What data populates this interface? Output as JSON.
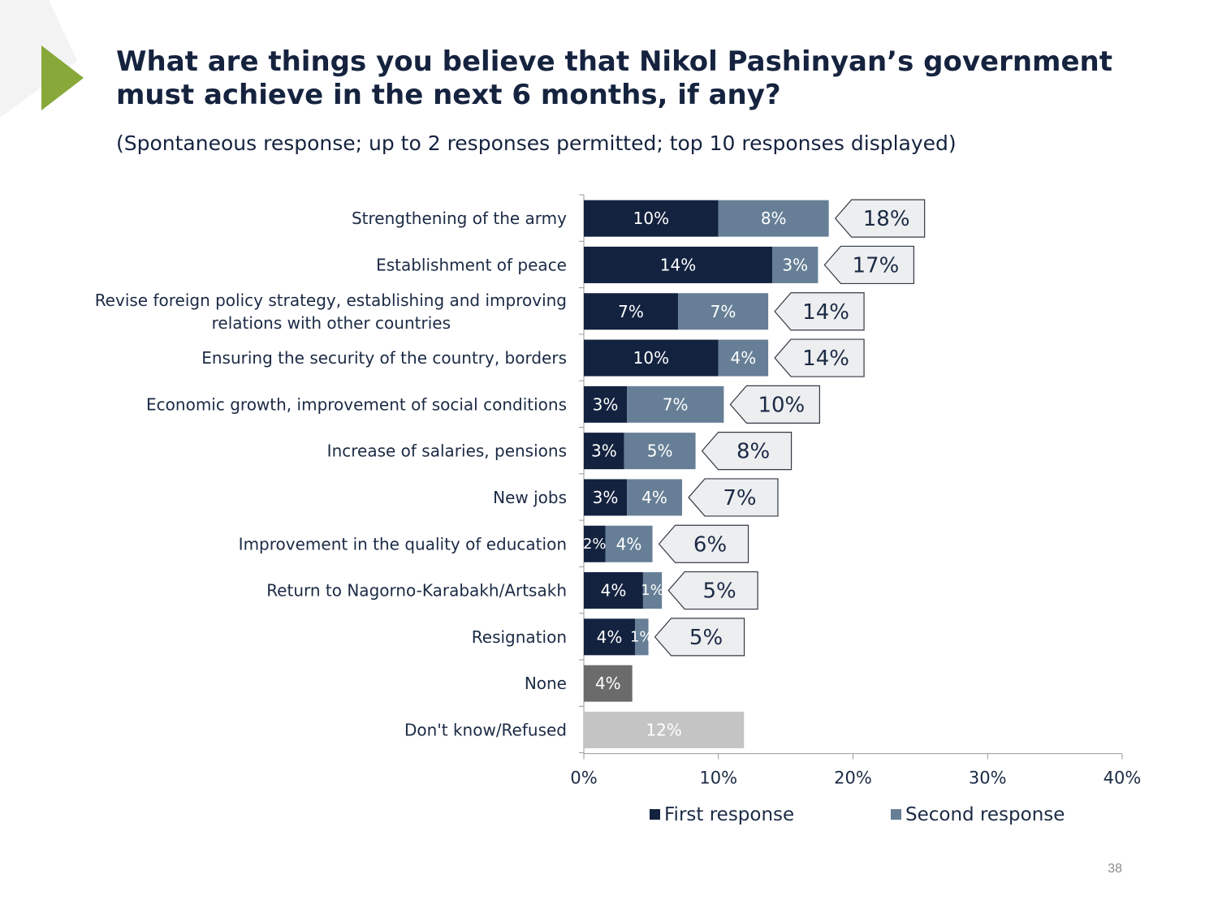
{
  "title": "What are things you believe that Nikol Pashinyan’s government must achieve in the next 6 months, if any?",
  "subtitle": "(Spontaneous response; up to 2 responses permitted; top 10 responses displayed)",
  "page_number": "38",
  "colors": {
    "first": "#13223f",
    "second": "#667f96",
    "none": "#6b6b6b",
    "dont_know": "#c4c4c4",
    "callout_bg": "#edeef0",
    "accent": "#88a83a"
  },
  "chart_data": {
    "type": "bar",
    "orientation": "horizontal",
    "stacked": true,
    "categories": [
      "Strengthening of the army",
      "Establishment of peace",
      [
        "Revise foreign policy strategy, establishing and improving",
        "relations with other countries"
      ],
      "Ensuring the security of the country, borders",
      "Economic growth, improvement of social conditions",
      "Increase of salaries, pensions",
      "New jobs",
      "Improvement in the quality of education",
      "Return to Nagorno-Karabakh/Artsakh",
      "Resignation",
      "None",
      "Don't know/Refused"
    ],
    "series": [
      {
        "name": "First response",
        "values": [
          10,
          14,
          7,
          10,
          3,
          3,
          3,
          2,
          4,
          4,
          null,
          null
        ]
      },
      {
        "name": "Second response",
        "values": [
          8,
          3,
          7,
          4,
          7,
          5,
          4,
          4,
          1,
          1,
          null,
          null
        ]
      }
    ],
    "bar_values": [
      10,
      14,
      7,
      10,
      3.2,
      3.0,
      3.2,
      1.6,
      4.4,
      3.8,
      null,
      null
    ],
    "bar_values_second": [
      8.2,
      3.4,
      6.7,
      3.7,
      7.2,
      5.3,
      4.1,
      3.5,
      1.4,
      1.0,
      null,
      null
    ],
    "single_bars": [
      {
        "row": 10,
        "value": 3.6,
        "label": "4%",
        "color_key": "none"
      },
      {
        "row": 11,
        "value": 11.9,
        "label": "12%",
        "color_key": "dont_know"
      }
    ],
    "totals": [
      18,
      17,
      14,
      14,
      10,
      8,
      7,
      6,
      5,
      5,
      null,
      null
    ],
    "total_labels": [
      "18%",
      "17%",
      "14%",
      "14%",
      "10%",
      "8%",
      "7%",
      "6%",
      "5%",
      "5%",
      null,
      null
    ],
    "first_labels": [
      "10%",
      "14%",
      "7%",
      "10%",
      "3%",
      "3%",
      "3%",
      "2%",
      "4%",
      "4%",
      null,
      null
    ],
    "second_labels": [
      "8%",
      "3%",
      "7%",
      "4%",
      "7%",
      "5%",
      "4%",
      "4%",
      "1%",
      "1%",
      null,
      null
    ],
    "xlim": [
      0,
      40
    ],
    "xticks": [
      0,
      10,
      20,
      30,
      40
    ],
    "xtick_labels": [
      "0%",
      "10%",
      "20%",
      "30%",
      "40%"
    ],
    "legend": [
      {
        "label": "First response",
        "color_key": "first"
      },
      {
        "label": "Second response",
        "color_key": "second"
      }
    ],
    "legend_position": "bottom",
    "grid": false
  }
}
